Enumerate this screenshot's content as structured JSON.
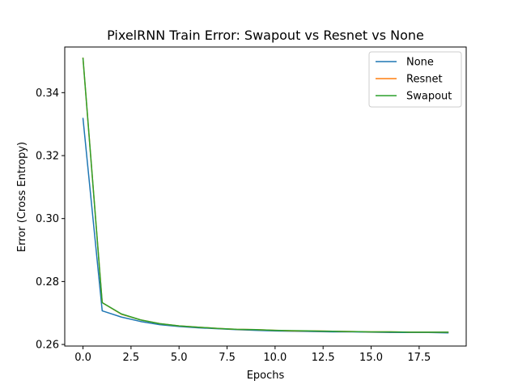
{
  "chart_data": {
    "type": "line",
    "title": "PixelRNN Train Error: Swapout vs Resnet vs None",
    "xlabel": "Epochs",
    "ylabel": "Error (Cross Entropy)",
    "xlim": [
      -0.95,
      19.95
    ],
    "ylim": [
      0.2595,
      0.3545
    ],
    "x_ticks": [
      0.0,
      2.5,
      5.0,
      7.5,
      10.0,
      12.5,
      15.0,
      17.5
    ],
    "x_tick_labels": [
      "0.0",
      "2.5",
      "5.0",
      "7.5",
      "10.0",
      "12.5",
      "15.0",
      "17.5"
    ],
    "y_ticks": [
      0.26,
      0.28,
      0.3,
      0.32,
      0.34
    ],
    "y_tick_labels": [
      "0.26",
      "0.28",
      "0.30",
      "0.32",
      "0.34"
    ],
    "grid": false,
    "legend_position": "top-right",
    "x": [
      0,
      1,
      2,
      3,
      4,
      5,
      6,
      7,
      8,
      9,
      10,
      11,
      12,
      13,
      14,
      15,
      16,
      17,
      18,
      19
    ],
    "series": [
      {
        "name": "None",
        "color": "#1f77b4",
        "values": [
          0.3318,
          0.2707,
          0.2687,
          0.2673,
          0.2663,
          0.2657,
          0.2653,
          0.265,
          0.2647,
          0.2645,
          0.2643,
          0.2642,
          0.2641,
          0.264,
          0.264,
          0.2639,
          0.2638,
          0.2638,
          0.2638,
          0.2637
        ]
      },
      {
        "name": "Resnet",
        "color": "#ff7f0e",
        "values": [
          0.3509,
          0.2733,
          0.2696,
          0.2678,
          0.2666,
          0.2659,
          0.2655,
          0.2651,
          0.2648,
          0.2647,
          0.2645,
          0.2643,
          0.2643,
          0.2642,
          0.2641,
          0.264,
          0.264,
          0.2639,
          0.2639,
          0.2639
        ]
      },
      {
        "name": "Swapout",
        "color": "#2ca02c",
        "values": [
          0.3509,
          0.2733,
          0.2697,
          0.2678,
          0.2666,
          0.2659,
          0.2655,
          0.2651,
          0.2648,
          0.2647,
          0.2645,
          0.2644,
          0.2643,
          0.2642,
          0.2641,
          0.264,
          0.264,
          0.2639,
          0.2639,
          0.2639
        ]
      }
    ]
  }
}
